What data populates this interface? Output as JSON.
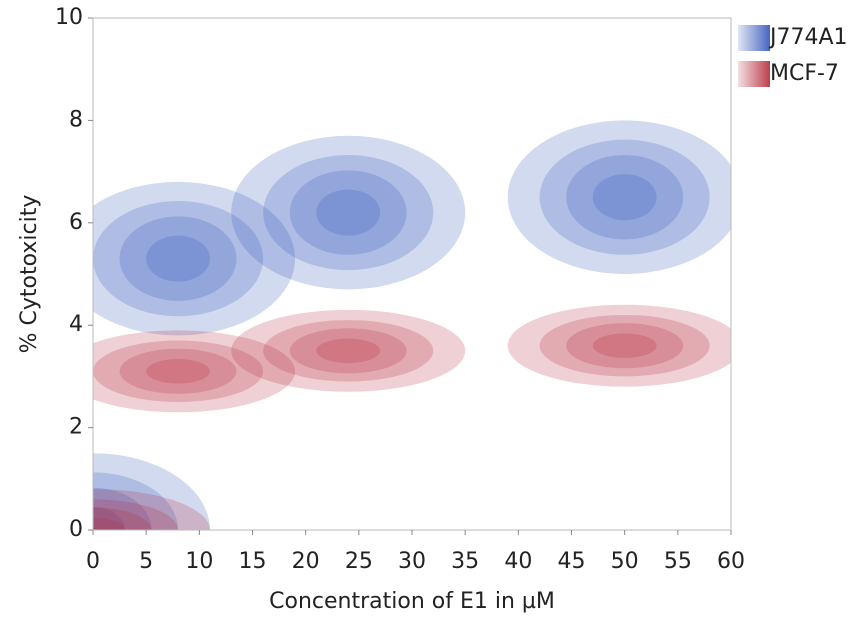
{
  "chart_data": {
    "type": "density",
    "x_label": "Concentration of E1 in µM",
    "y_label": "% Cytotoxicity",
    "xlim": [
      0,
      60
    ],
    "xticks": [
      0,
      5,
      10,
      15,
      20,
      25,
      30,
      35,
      40,
      45,
      50,
      55,
      60
    ],
    "ylim": [
      0,
      10
    ],
    "yticks": [
      0,
      2,
      4,
      6,
      8,
      10
    ],
    "legend": "top-right",
    "series": [
      {
        "name": "J774A1",
        "color": "#3355bb",
        "x": [
          0,
          8,
          24,
          50
        ],
        "values": [
          0,
          5.3,
          6.2,
          6.5
        ]
      },
      {
        "name": "MCF-7",
        "color": "#b52a3a",
        "x": [
          0,
          8,
          24,
          50
        ],
        "values": [
          0,
          3.1,
          3.5,
          3.6
        ]
      }
    ]
  }
}
